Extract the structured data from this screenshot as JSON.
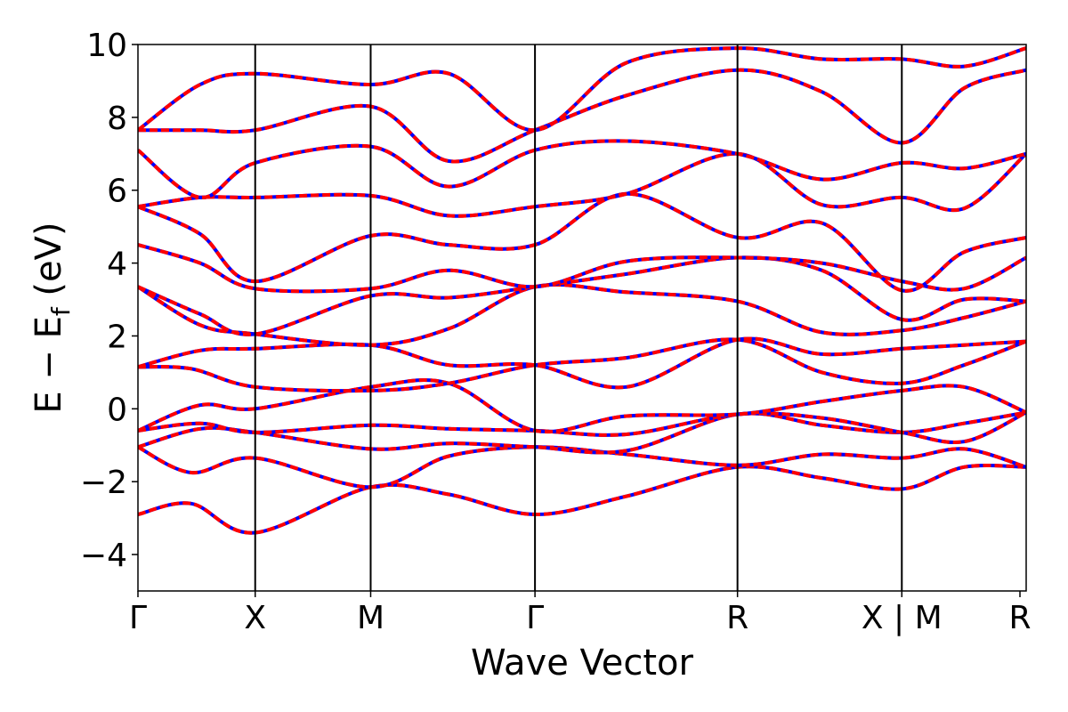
{
  "chart_data": {
    "type": "line",
    "title": "",
    "xlabel": "Wave Vector",
    "ylabel": "E − E",
    "ylabel_subscript": "f",
    "ylabel_unit": " (eV)",
    "ylim": [
      -5,
      10
    ],
    "yticks": [
      {
        "value": 10,
        "label": "10"
      },
      {
        "value": 8,
        "label": "8"
      },
      {
        "value": 6,
        "label": "6"
      },
      {
        "value": 4,
        "label": "4"
      },
      {
        "value": 2,
        "label": "2"
      },
      {
        "value": 0,
        "label": "0"
      },
      {
        "value": -2,
        "label": "−2"
      },
      {
        "value": -4,
        "label": "−4"
      }
    ],
    "xlim": [
      0,
      1
    ],
    "kpoints": [
      {
        "label": "Γ",
        "x": 0.0
      },
      {
        "label": "X",
        "x": 0.132
      },
      {
        "label": "M",
        "x": 0.262
      },
      {
        "label": "Γ",
        "x": 0.447
      },
      {
        "label": "R",
        "x": 0.675
      },
      {
        "label": "X | M",
        "x": 0.86
      },
      {
        "label": "R",
        "x": 0.993
      }
    ],
    "colors": {
      "band_primary": "#ff0000",
      "band_secondary": "#0000ff",
      "axis": "#000000"
    },
    "series": [
      {
        "points": [
          [
            0,
            -2.9
          ],
          [
            0.06,
            -2.6
          ],
          [
            0.132,
            -3.4
          ],
          [
            0.262,
            -2.15
          ],
          [
            0.35,
            -2.35
          ],
          [
            0.447,
            -2.9
          ],
          [
            0.55,
            -2.4
          ],
          [
            0.675,
            -1.6
          ],
          [
            0.77,
            -1.9
          ],
          [
            0.86,
            -2.2
          ],
          [
            0.93,
            -1.6
          ],
          [
            1.0,
            -1.6
          ]
        ]
      },
      {
        "points": [
          [
            0,
            -1.05
          ],
          [
            0.06,
            -1.75
          ],
          [
            0.132,
            -1.35
          ],
          [
            0.262,
            -2.15
          ],
          [
            0.35,
            -1.3
          ],
          [
            0.447,
            -1.05
          ],
          [
            0.55,
            -1.25
          ],
          [
            0.675,
            -1.55
          ],
          [
            0.77,
            -1.25
          ],
          [
            0.86,
            -1.35
          ],
          [
            0.93,
            -1.1
          ],
          [
            1.0,
            -1.6
          ]
        ]
      },
      {
        "points": [
          [
            0,
            -1.05
          ],
          [
            0.07,
            -0.55
          ],
          [
            0.132,
            -0.65
          ],
          [
            0.262,
            -1.1
          ],
          [
            0.35,
            -0.95
          ],
          [
            0.447,
            -1.05
          ],
          [
            0.55,
            -1.15
          ],
          [
            0.675,
            -0.15
          ],
          [
            0.77,
            -0.45
          ],
          [
            0.86,
            -0.65
          ],
          [
            0.93,
            -0.4
          ],
          [
            1.0,
            -0.1
          ]
        ]
      },
      {
        "points": [
          [
            0,
            -0.6
          ],
          [
            0.07,
            -0.4
          ],
          [
            0.132,
            -0.65
          ],
          [
            0.262,
            -0.45
          ],
          [
            0.35,
            -0.55
          ],
          [
            0.447,
            -0.6
          ],
          [
            0.55,
            -0.7
          ],
          [
            0.675,
            -0.15
          ],
          [
            0.77,
            -0.25
          ],
          [
            0.86,
            -0.65
          ],
          [
            0.93,
            -0.9
          ],
          [
            1.0,
            -0.1
          ]
        ]
      },
      {
        "points": [
          [
            0,
            -0.6
          ],
          [
            0.07,
            0.1
          ],
          [
            0.132,
            0.0
          ],
          [
            0.262,
            0.6
          ],
          [
            0.35,
            0.7
          ],
          [
            0.447,
            -0.6
          ],
          [
            0.55,
            -0.2
          ],
          [
            0.675,
            -0.15
          ],
          [
            0.77,
            0.2
          ],
          [
            0.86,
            0.5
          ],
          [
            0.93,
            0.6
          ],
          [
            1.0,
            -0.1
          ]
        ]
      },
      {
        "points": [
          [
            0,
            1.15
          ],
          [
            0.06,
            1.1
          ],
          [
            0.132,
            0.6
          ],
          [
            0.262,
            0.5
          ],
          [
            0.35,
            0.7
          ],
          [
            0.447,
            1.2
          ],
          [
            0.55,
            1.4
          ],
          [
            0.675,
            1.9
          ],
          [
            0.77,
            1.0
          ],
          [
            0.86,
            0.7
          ],
          [
            0.93,
            1.2
          ],
          [
            1.0,
            1.85
          ]
        ]
      },
      {
        "points": [
          [
            0,
            1.15
          ],
          [
            0.07,
            1.6
          ],
          [
            0.132,
            1.65
          ],
          [
            0.262,
            1.75
          ],
          [
            0.35,
            1.2
          ],
          [
            0.447,
            1.2
          ],
          [
            0.55,
            0.6
          ],
          [
            0.675,
            1.9
          ],
          [
            0.77,
            1.5
          ],
          [
            0.86,
            1.65
          ],
          [
            0.93,
            1.75
          ],
          [
            1.0,
            1.85
          ]
        ]
      },
      {
        "points": [
          [
            0,
            3.35
          ],
          [
            0.07,
            2.3
          ],
          [
            0.132,
            2.05
          ],
          [
            0.262,
            1.75
          ],
          [
            0.35,
            2.2
          ],
          [
            0.447,
            3.35
          ],
          [
            0.55,
            3.2
          ],
          [
            0.675,
            2.95
          ],
          [
            0.77,
            2.1
          ],
          [
            0.86,
            2.15
          ],
          [
            0.93,
            2.5
          ],
          [
            1.0,
            2.95
          ]
        ]
      },
      {
        "points": [
          [
            0,
            3.35
          ],
          [
            0.07,
            2.6
          ],
          [
            0.132,
            2.05
          ],
          [
            0.262,
            3.1
          ],
          [
            0.35,
            3.05
          ],
          [
            0.447,
            3.35
          ],
          [
            0.55,
            3.7
          ],
          [
            0.675,
            4.15
          ],
          [
            0.77,
            3.8
          ],
          [
            0.86,
            2.45
          ],
          [
            0.93,
            3.0
          ],
          [
            1.0,
            2.95
          ]
        ]
      },
      {
        "points": [
          [
            0,
            4.5
          ],
          [
            0.07,
            4.0
          ],
          [
            0.132,
            3.3
          ],
          [
            0.262,
            3.3
          ],
          [
            0.35,
            3.8
          ],
          [
            0.447,
            3.35
          ],
          [
            0.55,
            4.05
          ],
          [
            0.675,
            4.15
          ],
          [
            0.77,
            4.0
          ],
          [
            0.86,
            3.5
          ],
          [
            0.93,
            3.3
          ],
          [
            1.0,
            4.15
          ]
        ]
      },
      {
        "points": [
          [
            0,
            5.55
          ],
          [
            0.07,
            4.8
          ],
          [
            0.132,
            3.5
          ],
          [
            0.262,
            4.75
          ],
          [
            0.35,
            4.5
          ],
          [
            0.447,
            4.5
          ],
          [
            0.55,
            5.9
          ],
          [
            0.675,
            4.7
          ],
          [
            0.77,
            5.1
          ],
          [
            0.86,
            3.25
          ],
          [
            0.93,
            4.3
          ],
          [
            1.0,
            4.7
          ]
        ]
      },
      {
        "points": [
          [
            0,
            5.55
          ],
          [
            0.07,
            5.8
          ],
          [
            0.132,
            5.8
          ],
          [
            0.262,
            5.85
          ],
          [
            0.35,
            5.3
          ],
          [
            0.447,
            5.55
          ],
          [
            0.55,
            5.9
          ],
          [
            0.675,
            7.0
          ],
          [
            0.77,
            5.6
          ],
          [
            0.86,
            5.8
          ],
          [
            0.93,
            5.5
          ],
          [
            1.0,
            7.0
          ]
        ]
      },
      {
        "points": [
          [
            0,
            7.1
          ],
          [
            0.07,
            5.8
          ],
          [
            0.132,
            6.75
          ],
          [
            0.262,
            7.2
          ],
          [
            0.35,
            6.1
          ],
          [
            0.447,
            7.1
          ],
          [
            0.55,
            7.35
          ],
          [
            0.675,
            7.0
          ],
          [
            0.77,
            6.3
          ],
          [
            0.86,
            6.75
          ],
          [
            0.93,
            6.6
          ],
          [
            1.0,
            7.0
          ]
        ]
      },
      {
        "points": [
          [
            0,
            7.65
          ],
          [
            0.07,
            7.65
          ],
          [
            0.132,
            7.65
          ],
          [
            0.262,
            8.3
          ],
          [
            0.35,
            6.8
          ],
          [
            0.447,
            7.65
          ],
          [
            0.55,
            8.6
          ],
          [
            0.675,
            9.3
          ],
          [
            0.77,
            8.7
          ],
          [
            0.86,
            7.3
          ],
          [
            0.93,
            8.8
          ],
          [
            1.0,
            9.3
          ]
        ]
      },
      {
        "points": [
          [
            0,
            7.65
          ],
          [
            0.07,
            8.9
          ],
          [
            0.132,
            9.2
          ],
          [
            0.262,
            8.9
          ],
          [
            0.35,
            9.2
          ],
          [
            0.447,
            7.65
          ],
          [
            0.55,
            9.5
          ],
          [
            0.675,
            9.9
          ],
          [
            0.77,
            9.6
          ],
          [
            0.86,
            9.6
          ],
          [
            0.93,
            9.4
          ],
          [
            1.0,
            9.9
          ]
        ]
      }
    ]
  }
}
